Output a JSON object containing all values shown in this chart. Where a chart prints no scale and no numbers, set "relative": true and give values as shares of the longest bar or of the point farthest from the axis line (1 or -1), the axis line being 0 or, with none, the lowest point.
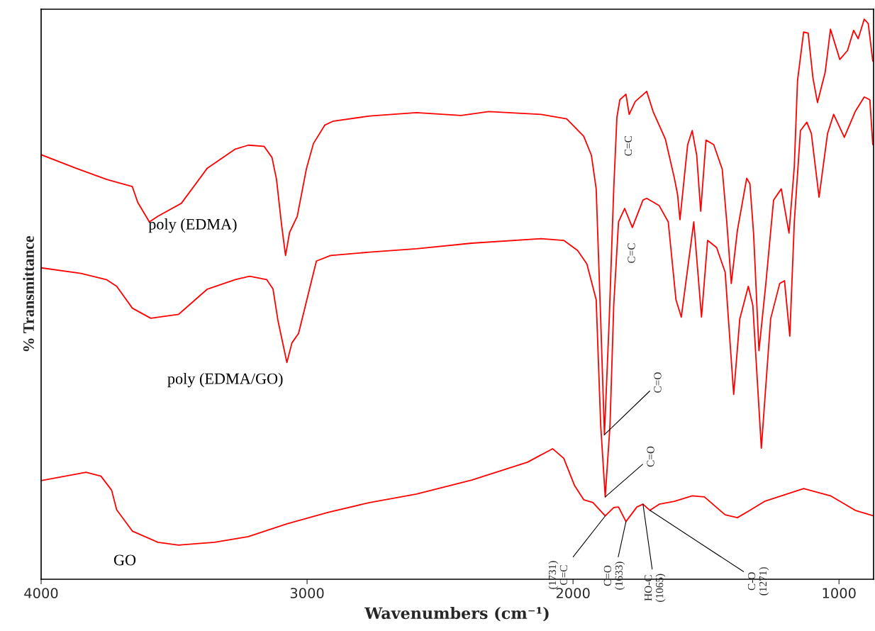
{
  "chart_data": {
    "type": "line",
    "xlabel": "Wavenumbers (cm⁻¹)",
    "ylabel": "% Transmittance",
    "relative": true,
    "xlim": [
      4000,
      870
    ],
    "xticks": [
      4000,
      3000,
      2000,
      1000
    ],
    "tick_labels": "x",
    "grid": false,
    "legend": false,
    "series": [
      {
        "name": "poly (EDMA)",
        "color": "#ff0000",
        "x": [
          4000,
          3870,
          3755,
          3657,
          3637,
          3593,
          3561,
          3473,
          3375,
          3270,
          3221,
          3162,
          3132,
          3115,
          3096,
          3081,
          3066,
          3037,
          3002,
          2976,
          2933,
          2901,
          2765,
          2589,
          2421,
          2317,
          2120,
          2024,
          1960,
          1931,
          1913,
          1896,
          1882,
          1864,
          1847,
          1835,
          1824,
          1801,
          1789,
          1766,
          1723,
          1699,
          1653,
          1619,
          1607,
          1598,
          1569,
          1552,
          1535,
          1520,
          1500,
          1471,
          1439,
          1422,
          1405,
          1382,
          1347,
          1335,
          1321,
          1301,
          1275,
          1246,
          1217,
          1188,
          1168,
          1156,
          1133,
          1116,
          1098,
          1081,
          1052,
          1032,
          997,
          968,
          945,
          928,
          905,
          890,
          873
        ],
        "values": [
          0.758,
          0.734,
          0.714,
          0.701,
          0.673,
          0.638,
          0.648,
          0.671,
          0.734,
          0.768,
          0.775,
          0.773,
          0.753,
          0.714,
          0.633,
          0.578,
          0.619,
          0.648,
          0.734,
          0.778,
          0.811,
          0.818,
          0.827,
          0.833,
          0.828,
          0.835,
          0.83,
          0.822,
          0.791,
          0.757,
          0.697,
          0.463,
          0.258,
          0.463,
          0.697,
          0.825,
          0.856,
          0.866,
          0.83,
          0.853,
          0.871,
          0.835,
          0.786,
          0.716,
          0.687,
          0.642,
          0.776,
          0.801,
          0.757,
          0.657,
          0.784,
          0.776,
          0.732,
          0.638,
          0.528,
          0.623,
          0.716,
          0.706,
          0.616,
          0.408,
          0.528,
          0.677,
          0.697,
          0.618,
          0.737,
          0.89,
          0.977,
          0.975,
          0.895,
          0.851,
          0.905,
          0.982,
          0.928,
          0.944,
          0.98,
          0.965,
          1.0,
          0.992,
          0.925
        ]
      },
      {
        "name": "poly (EDMA/GO)",
        "color": "#ff0000",
        "x": [
          4000,
          3850,
          3755,
          3716,
          3657,
          3588,
          3483,
          3375,
          3270,
          3216,
          3152,
          3128,
          3110,
          3076,
          3057,
          3032,
          2965,
          2912,
          2765,
          2589,
          2381,
          2120,
          2035,
          1983,
          1948,
          1913,
          1896,
          1879,
          1861,
          1847,
          1829,
          1806,
          1777,
          1737,
          1723,
          1676,
          1642,
          1613,
          1593,
          1546,
          1517,
          1494,
          1460,
          1428,
          1396,
          1373,
          1341,
          1324,
          1292,
          1257,
          1223,
          1205,
          1185,
          1168,
          1145,
          1121,
          1104,
          1075,
          1043,
          1020,
          980,
          939,
          905,
          884,
          873
        ],
        "values": [
          0.556,
          0.546,
          0.535,
          0.523,
          0.484,
          0.466,
          0.473,
          0.518,
          0.535,
          0.541,
          0.535,
          0.518,
          0.463,
          0.387,
          0.422,
          0.439,
          0.568,
          0.578,
          0.584,
          0.59,
          0.6,
          0.608,
          0.605,
          0.587,
          0.563,
          0.499,
          0.275,
          0.147,
          0.275,
          0.489,
          0.638,
          0.662,
          0.628,
          0.677,
          0.68,
          0.667,
          0.638,
          0.499,
          0.468,
          0.638,
          0.468,
          0.605,
          0.592,
          0.548,
          0.33,
          0.465,
          0.523,
          0.489,
          0.234,
          0.465,
          0.528,
          0.533,
          0.434,
          0.638,
          0.801,
          0.816,
          0.796,
          0.682,
          0.796,
          0.83,
          0.789,
          0.835,
          0.861,
          0.856,
          0.776
        ]
      },
      {
        "name": "GO",
        "color": "#ff0000",
        "x": [
          4000,
          3831,
          3775,
          3735,
          3716,
          3657,
          3561,
          3483,
          3348,
          3221,
          3076,
          2923,
          2765,
          2589,
          2381,
          2171,
          2077,
          2035,
          1994,
          1960,
          1925,
          1879,
          1847,
          1829,
          1801,
          1760,
          1737,
          1711,
          1676,
          1619,
          1552,
          1506,
          1428,
          1382,
          1335,
          1280,
          1133,
          1032,
          939,
          870
        ],
        "values": [
          0.176,
          0.191,
          0.184,
          0.159,
          0.124,
          0.086,
          0.066,
          0.061,
          0.066,
          0.076,
          0.099,
          0.119,
          0.137,
          0.152,
          0.177,
          0.209,
          0.233,
          0.216,
          0.167,
          0.142,
          0.137,
          0.113,
          0.128,
          0.129,
          0.103,
          0.129,
          0.134,
          0.123,
          0.134,
          0.139,
          0.149,
          0.147,
          0.115,
          0.11,
          0.123,
          0.139,
          0.162,
          0.149,
          0.123,
          0.113
        ]
      }
    ],
    "annotations": [
      {
        "text": "C=C",
        "x": 1789,
        "y": 0.83
      },
      {
        "text": "C=C",
        "x": 1777,
        "y": 0.628
      },
      {
        "text": "C=O",
        "x": 1882,
        "y": 0.258
      },
      {
        "text": "C=O",
        "x": 1879,
        "y": 0.147
      },
      {
        "text": "(1731)\nC=C",
        "x": 1879,
        "y": 0.113
      },
      {
        "text": "C=O\n(1633)",
        "x": 1801,
        "y": 0.103
      },
      {
        "text": "HO-C\n(1065)",
        "x": 1737,
        "y": 0.134
      },
      {
        "text": "C-O\n(1271)",
        "x": 1711,
        "y": 0.123
      }
    ]
  }
}
